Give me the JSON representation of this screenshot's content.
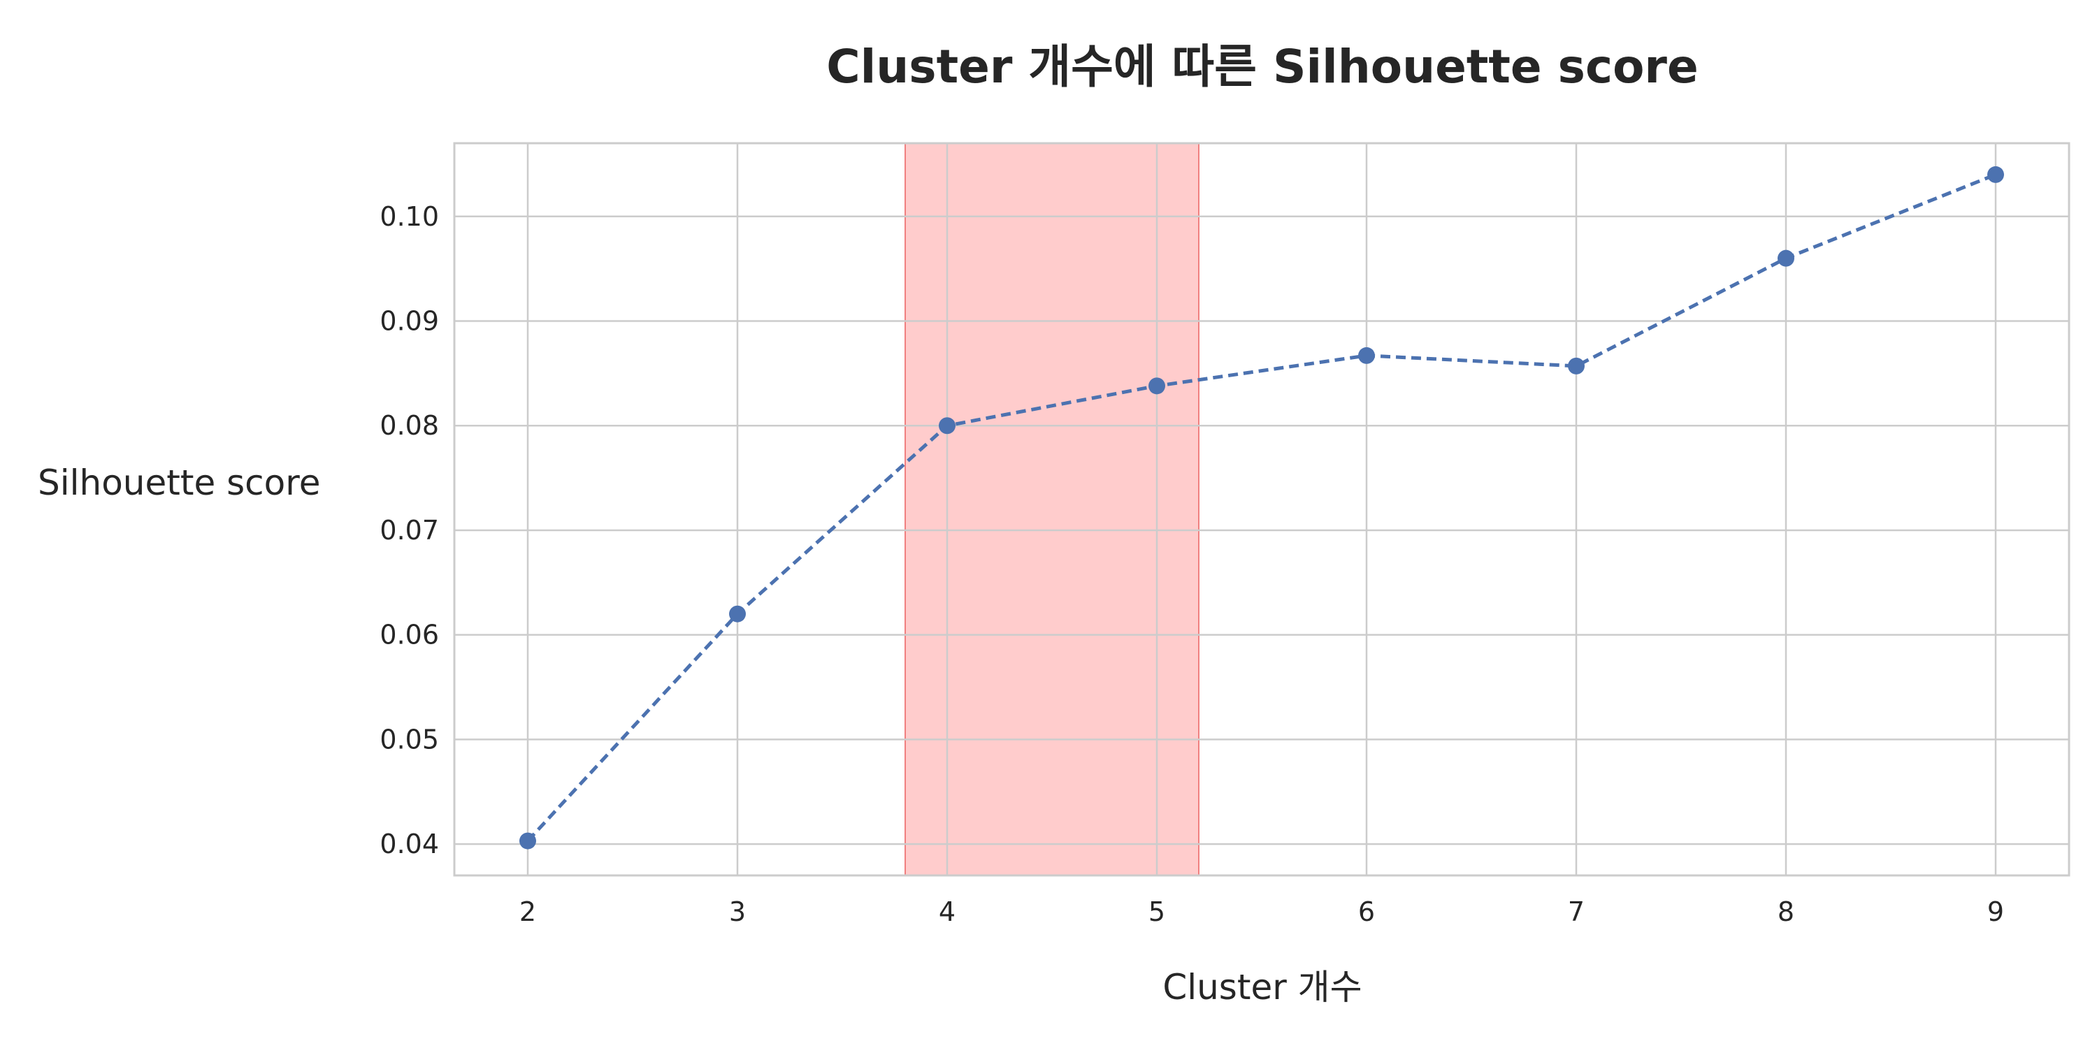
{
  "chart_data": {
    "type": "line",
    "title": "Cluster 개수에 따른 Silhouette score",
    "xlabel": "Cluster 개수",
    "ylabel": "Silhouette score",
    "x": [
      2,
      3,
      4,
      5,
      6,
      7,
      8,
      9
    ],
    "x_ticks": [
      "2",
      "3",
      "4",
      "5",
      "6",
      "7",
      "8",
      "9"
    ],
    "y_ticks": [
      "0.04",
      "0.05",
      "0.06",
      "0.07",
      "0.08",
      "0.09",
      "0.10"
    ],
    "y_tick_values": [
      0.04,
      0.05,
      0.06,
      0.07,
      0.08,
      0.09,
      0.1
    ],
    "xlim": [
      1.65,
      9.35
    ],
    "ylim": [
      0.037,
      0.107
    ],
    "series": [
      {
        "values": [
          0.0403,
          0.062,
          0.08,
          0.0838,
          0.0867,
          0.0857,
          0.096,
          0.104
        ],
        "color": "#4c72b0",
        "line_style": "dashed",
        "marker": "circle"
      }
    ],
    "highlight_span": {
      "x_range": [
        3.8,
        5.2
      ],
      "color": "#ff9999"
    },
    "grid": true,
    "legend": "none"
  }
}
